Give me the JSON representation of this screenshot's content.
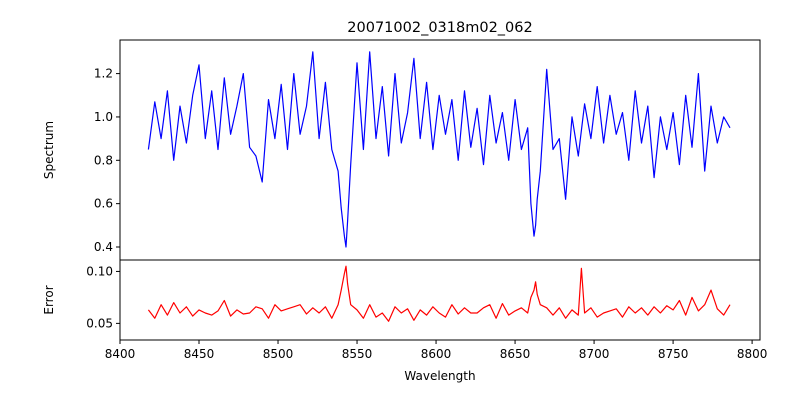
{
  "chart_data": [
    {
      "type": "line",
      "title": "20071002_0318m02_062",
      "xlabel": "",
      "ylabel": "Spectrum",
      "xlim": [
        8400,
        8805
      ],
      "ylim": [
        0.34,
        1.355
      ],
      "yticks": [
        0.4,
        0.6,
        0.8,
        1.0,
        1.2
      ],
      "ytick_labels": [
        "0.4",
        "0.6",
        "0.8",
        "1.0",
        "1.2"
      ],
      "grid": false,
      "series": [
        {
          "color": "#0000ff",
          "x": [
            8418,
            8422,
            8426,
            8430,
            8434,
            8438,
            8442,
            8446,
            8450,
            8454,
            8458,
            8462,
            8466,
            8470,
            8474,
            8478,
            8482,
            8486,
            8490,
            8494,
            8498,
            8502,
            8506,
            8510,
            8514,
            8518,
            8522,
            8526,
            8530,
            8534,
            8538,
            8540,
            8542,
            8543,
            8544,
            8546,
            8550,
            8554,
            8558,
            8562,
            8566,
            8570,
            8574,
            8578,
            8582,
            8586,
            8590,
            8594,
            8598,
            8602,
            8606,
            8610,
            8614,
            8618,
            8622,
            8626,
            8630,
            8634,
            8638,
            8642,
            8646,
            8650,
            8654,
            8658,
            8660,
            8662,
            8663,
            8664,
            8666,
            8670,
            8674,
            8678,
            8682,
            8686,
            8690,
            8694,
            8698,
            8702,
            8706,
            8710,
            8714,
            8718,
            8722,
            8726,
            8730,
            8734,
            8738,
            8742,
            8746,
            8750,
            8754,
            8758,
            8762,
            8766,
            8770,
            8774,
            8778,
            8782,
            8786
          ],
          "y": [
            0.85,
            1.07,
            0.9,
            1.12,
            0.8,
            1.05,
            0.88,
            1.1,
            1.24,
            0.9,
            1.12,
            0.85,
            1.18,
            0.92,
            1.05,
            1.2,
            0.86,
            0.82,
            0.7,
            1.08,
            0.9,
            1.15,
            0.85,
            1.2,
            0.92,
            1.05,
            1.3,
            0.9,
            1.16,
            0.85,
            0.75,
            0.58,
            0.45,
            0.4,
            0.52,
            0.78,
            1.25,
            0.85,
            1.3,
            0.9,
            1.14,
            0.82,
            1.2,
            0.88,
            1.02,
            1.27,
            0.9,
            1.16,
            0.85,
            1.1,
            0.92,
            1.08,
            0.8,
            1.12,
            0.86,
            1.04,
            0.78,
            1.1,
            0.88,
            1.02,
            0.8,
            1.08,
            0.85,
            0.95,
            0.6,
            0.45,
            0.5,
            0.62,
            0.75,
            1.22,
            0.85,
            0.9,
            0.62,
            1.0,
            0.82,
            1.06,
            0.9,
            1.14,
            0.88,
            1.1,
            0.92,
            1.02,
            0.8,
            1.12,
            0.88,
            1.05,
            0.72,
            1.0,
            0.85,
            1.02,
            0.78,
            1.1,
            0.86,
            1.2,
            0.75,
            1.05,
            0.88,
            1.0,
            0.95
          ]
        }
      ]
    },
    {
      "type": "line",
      "title": "",
      "xlabel": "Wavelength",
      "ylabel": "Error",
      "xlim": [
        8400,
        8805
      ],
      "ylim": [
        0.034,
        0.111
      ],
      "xticks": [
        8400,
        8450,
        8500,
        8550,
        8600,
        8650,
        8700,
        8750,
        8800
      ],
      "xtick_labels": [
        "8400",
        "8450",
        "8500",
        "8550",
        "8600",
        "8650",
        "8700",
        "8750",
        "8800"
      ],
      "yticks": [
        0.05,
        0.1
      ],
      "ytick_labels": [
        "0.05",
        "0.10"
      ],
      "grid": false,
      "series": [
        {
          "color": "#ff0000",
          "x": [
            8418,
            8422,
            8426,
            8430,
            8434,
            8438,
            8442,
            8446,
            8450,
            8454,
            8458,
            8462,
            8466,
            8470,
            8474,
            8478,
            8482,
            8486,
            8490,
            8494,
            8498,
            8502,
            8506,
            8510,
            8514,
            8518,
            8522,
            8526,
            8530,
            8534,
            8538,
            8540,
            8542,
            8543,
            8544,
            8546,
            8550,
            8554,
            8558,
            8562,
            8566,
            8570,
            8574,
            8578,
            8582,
            8586,
            8590,
            8594,
            8598,
            8602,
            8606,
            8610,
            8614,
            8618,
            8622,
            8626,
            8630,
            8634,
            8638,
            8642,
            8646,
            8650,
            8654,
            8658,
            8660,
            8662,
            8663,
            8664,
            8666,
            8670,
            8674,
            8678,
            8682,
            8686,
            8690,
            8692,
            8694,
            8698,
            8702,
            8706,
            8710,
            8714,
            8718,
            8722,
            8726,
            8730,
            8734,
            8738,
            8742,
            8746,
            8750,
            8754,
            8758,
            8762,
            8766,
            8770,
            8774,
            8778,
            8782,
            8786
          ],
          "y": [
            0.063,
            0.055,
            0.068,
            0.058,
            0.07,
            0.06,
            0.066,
            0.057,
            0.063,
            0.06,
            0.058,
            0.062,
            0.072,
            0.057,
            0.063,
            0.059,
            0.06,
            0.066,
            0.064,
            0.055,
            0.068,
            0.062,
            0.064,
            0.066,
            0.068,
            0.059,
            0.065,
            0.06,
            0.066,
            0.055,
            0.068,
            0.082,
            0.098,
            0.105,
            0.088,
            0.068,
            0.063,
            0.055,
            0.068,
            0.056,
            0.06,
            0.052,
            0.066,
            0.06,
            0.064,
            0.053,
            0.063,
            0.058,
            0.066,
            0.06,
            0.056,
            0.068,
            0.059,
            0.065,
            0.06,
            0.06,
            0.065,
            0.068,
            0.055,
            0.069,
            0.058,
            0.062,
            0.065,
            0.06,
            0.075,
            0.082,
            0.09,
            0.078,
            0.068,
            0.065,
            0.058,
            0.065,
            0.055,
            0.063,
            0.058,
            0.103,
            0.06,
            0.065,
            0.056,
            0.06,
            0.062,
            0.064,
            0.056,
            0.066,
            0.06,
            0.065,
            0.058,
            0.066,
            0.06,
            0.067,
            0.063,
            0.072,
            0.058,
            0.075,
            0.062,
            0.068,
            0.082,
            0.064,
            0.058,
            0.068
          ]
        }
      ]
    }
  ]
}
